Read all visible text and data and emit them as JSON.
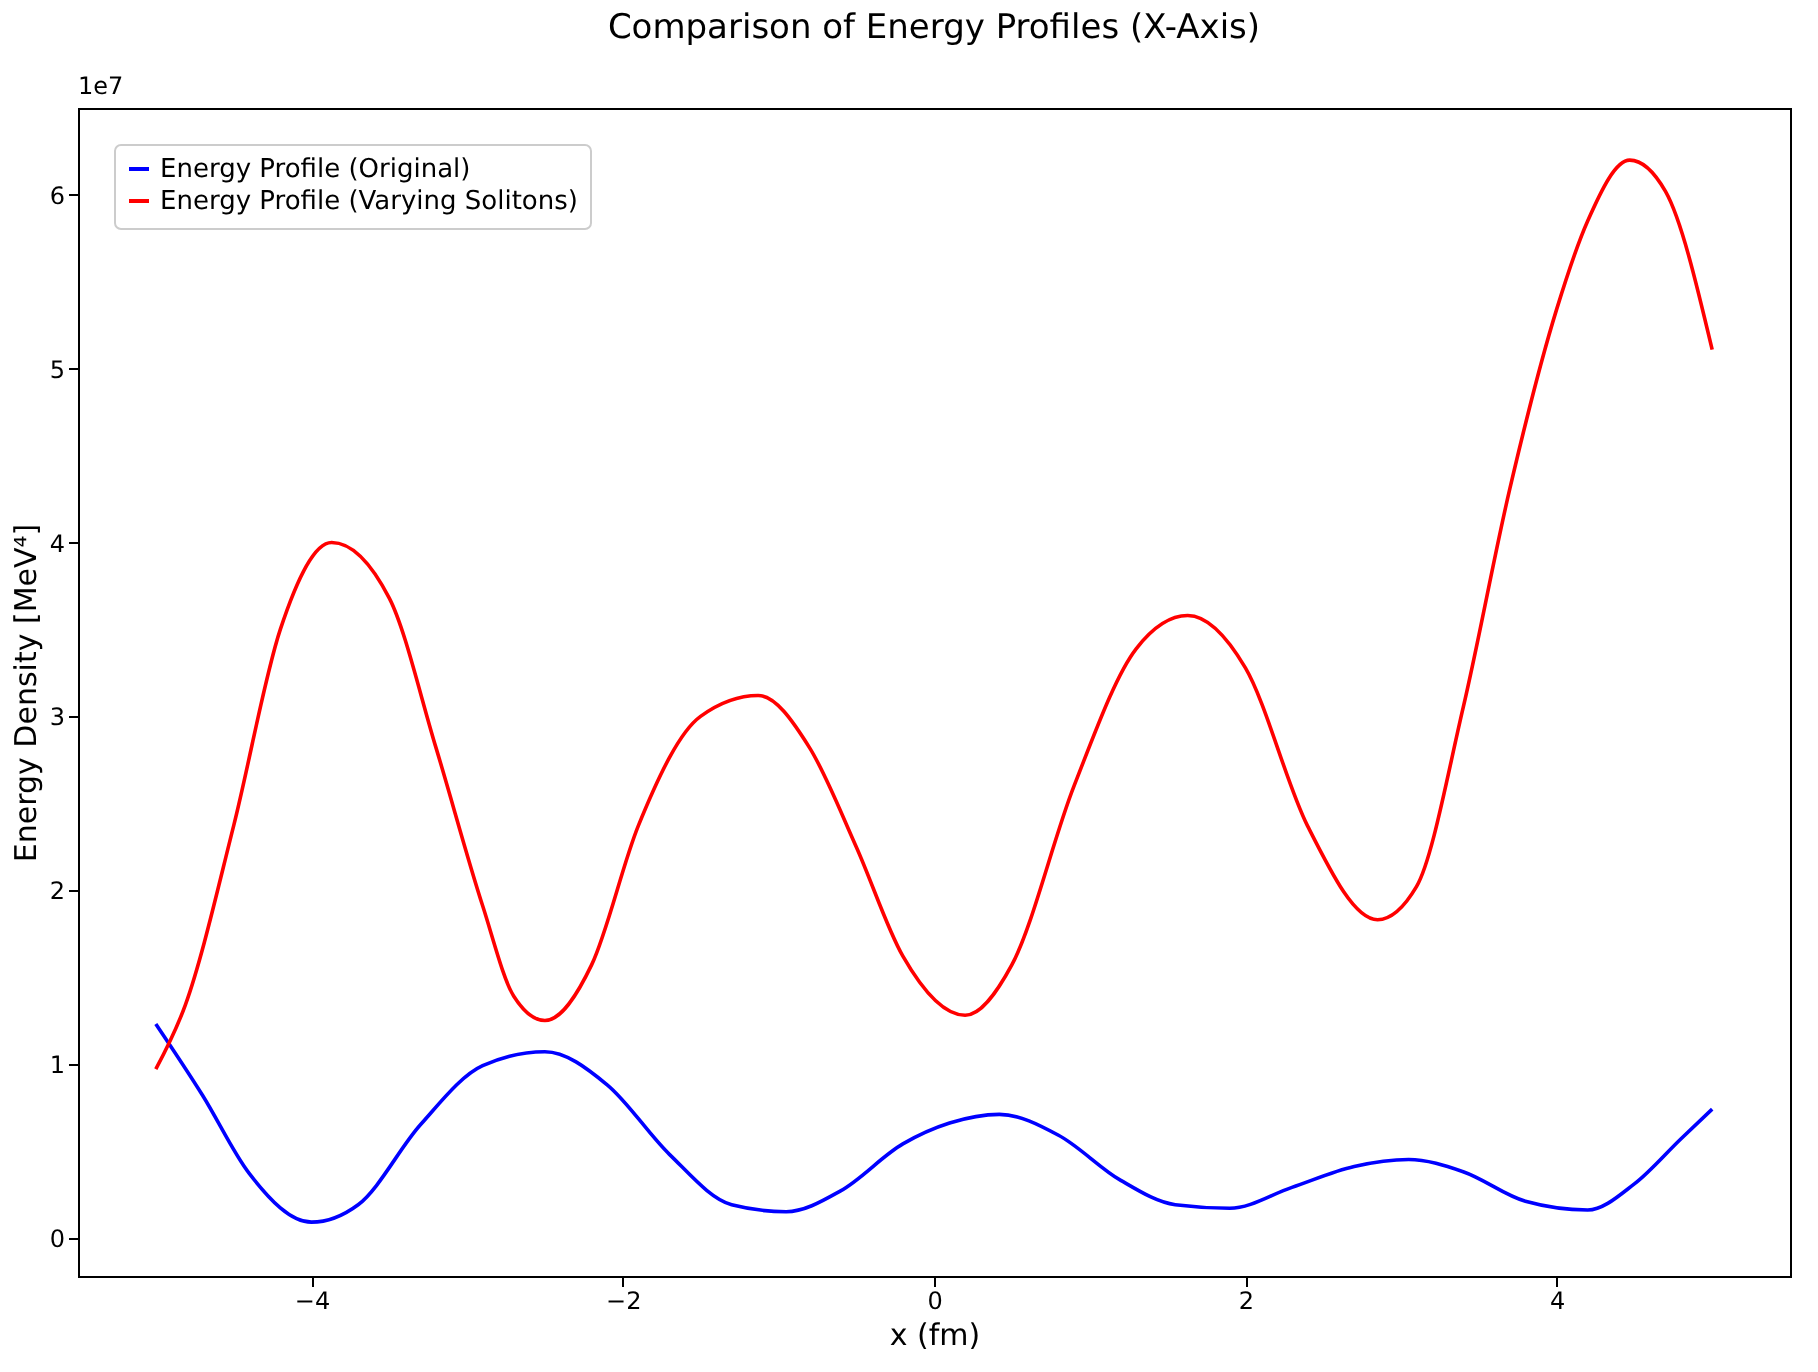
{
  "chart_data": {
    "type": "line",
    "title": "Comparison of Energy Profiles (X-Axis)",
    "xlabel": "x (fm)",
    "ylabel": "Energy Density [MeV⁴]",
    "annotations": [
      "1e7"
    ],
    "xlim": [
      -5.5,
      5.5
    ],
    "xticks": [
      -4,
      -2,
      0,
      2,
      4
    ],
    "ylim": [
      -0.22,
      6.5
    ],
    "yticks": [
      0,
      1,
      2,
      3,
      4,
      5,
      6
    ],
    "grid": false,
    "legend": "top left",
    "line_style": "solid",
    "marker": "none",
    "series": [
      {
        "name": "Energy Profile (Original)",
        "color": "#0000ff",
        "x": [
          -5,
          -4.7,
          -4.4,
          -4,
          -3.7,
          -3.3,
          -2.9,
          -2.5,
          -2.1,
          -1.7,
          -1.3,
          -0.95,
          -0.6,
          -0.2,
          0.1,
          0.42,
          0.8,
          1.2,
          1.55,
          1.9,
          2.3,
          2.7,
          3.05,
          3.4,
          3.8,
          4.2,
          4.5,
          4.8,
          5
        ],
        "values": [
          1.23,
          0.82,
          0.37,
          0.09,
          0.19,
          0.65,
          0.99,
          1.07,
          0.88,
          0.48,
          0.19,
          0.15,
          0.27,
          0.54,
          0.66,
          0.71,
          0.59,
          0.33,
          0.19,
          0.17,
          0.29,
          0.41,
          0.45,
          0.38,
          0.21,
          0.16,
          0.31,
          0.57,
          0.74
        ]
      },
      {
        "name": "Energy Profile (Varying Solitons)",
        "color": "#ff0000",
        "x": [
          -5,
          -4.81,
          -4.5,
          -4.2,
          -3.87,
          -3.5,
          -3.2,
          -2.9,
          -2.7,
          -2.5,
          -2.2,
          -1.9,
          -1.5,
          -1.13,
          -0.8,
          -0.5,
          -0.2,
          0.2,
          0.5,
          0.9,
          1.3,
          1.63,
          2.0,
          2.4,
          2.85,
          3.1,
          3.4,
          3.7,
          4.0,
          4.2,
          4.47,
          4.7,
          5.0
        ],
        "values": [
          0.97,
          1.34,
          2.37,
          3.5,
          4.0,
          3.68,
          2.82,
          1.91,
          1.39,
          1.25,
          1.57,
          2.37,
          3.0,
          3.12,
          2.82,
          2.25,
          1.62,
          1.28,
          1.57,
          2.6,
          3.39,
          3.58,
          3.28,
          2.37,
          1.83,
          2.02,
          3.05,
          4.31,
          5.34,
          5.85,
          6.2,
          6.02,
          5.11
        ]
      }
    ]
  }
}
